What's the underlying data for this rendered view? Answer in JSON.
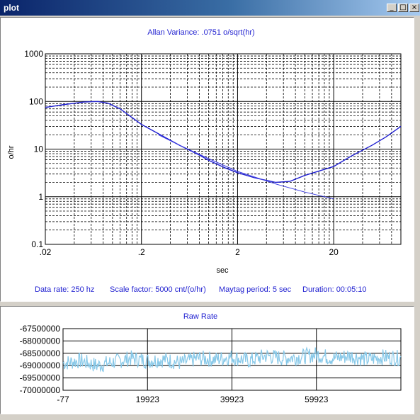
{
  "window": {
    "title": "plot",
    "buttons": {
      "minimize": "_",
      "maximize": "□",
      "close": "×"
    }
  },
  "colors": {
    "accent": "#1f1fd0",
    "raw_line": "#87c8e8",
    "grid": "#000000"
  },
  "allan": {
    "title": "Allan Variance: .0751 o/sqrt(hr)",
    "ylabel": "o/hr",
    "xlabel": "sec",
    "info": {
      "data_rate": "Data rate:  250 hz",
      "scale_factor": "Scale factor: 5000 cnt/(o/hr)",
      "maytag_period": "Maytag period:  5 sec",
      "duration": "Duration:  00:05:10"
    }
  },
  "raw": {
    "title": "Raw Rate"
  },
  "chart_data": [
    {
      "type": "line",
      "title": "Allan Variance: .0751 o/sqrt(hr)",
      "xlabel": "sec",
      "ylabel": "o/hr",
      "xscale": "log",
      "yscale": "log",
      "xlim": [
        0.02,
        100
      ],
      "ylim": [
        0.1,
        1000
      ],
      "x_ticks": [
        ".02",
        ".2",
        "2",
        "20"
      ],
      "y_ticks": [
        "0.1",
        "1",
        "10",
        "100",
        "1000"
      ],
      "grid": true,
      "series": [
        {
          "x": [
            0.02,
            0.03,
            0.05,
            0.07,
            0.09,
            0.12,
            0.2,
            0.3,
            0.5,
            0.8,
            1,
            1.5,
            2,
            3,
            5,
            7,
            10,
            15,
            20,
            30,
            50,
            70,
            100
          ],
          "y": [
            75,
            85,
            97,
            100,
            92,
            70,
            33,
            21,
            12,
            7.5,
            5.8,
            4.0,
            3.2,
            2.5,
            2.0,
            2.1,
            2.8,
            3.6,
            4.3,
            7.0,
            12,
            18,
            30
          ]
        },
        {
          "x": [
            0.3,
            0.5,
            1,
            2,
            3,
            5,
            10,
            20
          ],
          "y": [
            20,
            12,
            6.3,
            3.4,
            2.6,
            1.85,
            1.25,
            0.9
          ]
        }
      ]
    },
    {
      "type": "line",
      "title": "Raw Rate",
      "xlim": [
        -77,
        79923
      ],
      "ylim": [
        -70000000,
        -67500000
      ],
      "x_ticks": [
        "-77",
        "19923",
        "39923",
        "59923"
      ],
      "y_ticks": [
        "-67500000",
        "-68000000",
        "-68500000",
        "-69000000",
        "-69500000",
        "-70000000"
      ],
      "grid": true,
      "series": [
        {
          "x": [
            -77,
            3923,
            7923,
            11923,
            15923,
            19923,
            23923,
            27923,
            31923,
            35923,
            39923,
            43923,
            47923,
            51923,
            55923,
            59923,
            63923,
            67923,
            71923,
            75923,
            79923
          ],
          "y": [
            -68900000,
            -68800000,
            -69000000,
            -68850000,
            -68700000,
            -68800000,
            -68750000,
            -68900000,
            -68700000,
            -68750000,
            -68650000,
            -68800000,
            -68600000,
            -68700000,
            -68650000,
            -68550000,
            -68700000,
            -68600000,
            -68750000,
            -68650000,
            -68700000
          ]
        }
      ]
    }
  ]
}
